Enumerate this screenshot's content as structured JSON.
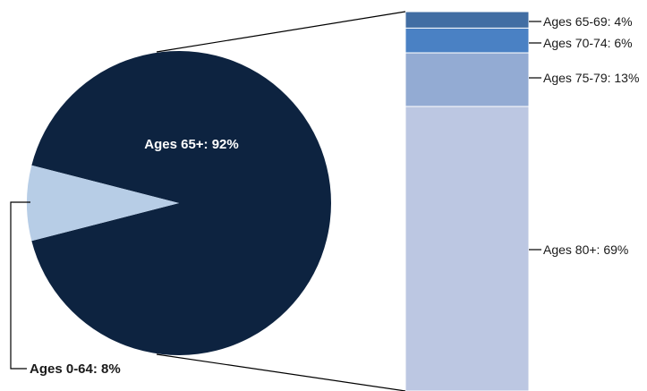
{
  "chart_data": {
    "type": "bar-of-pie",
    "pie": {
      "slices": [
        {
          "label": "Ages 65+: 92%",
          "category": "Ages 65+",
          "value": 92,
          "color": "#0d2340"
        },
        {
          "label": "Ages 0-64: 8%",
          "category": "Ages 0-64",
          "value": 8,
          "color": "#b7cde6"
        }
      ],
      "exploded_slice": "Ages 65+"
    },
    "bar": {
      "segments": [
        {
          "label": "Ages 65-69: 4%",
          "category": "Ages 65-69",
          "value": 4,
          "color": "#416da3"
        },
        {
          "label": "Ages 70-74: 6%",
          "category": "Ages 70-74",
          "value": 6,
          "color": "#4a81c4"
        },
        {
          "label": "Ages 75-79: 13%",
          "category": "Ages 75-79",
          "value": 13,
          "color": "#93abd3"
        },
        {
          "label": "Ages 80+: 69%",
          "category": "Ages 80+",
          "value": 69,
          "color": "#bcc7e2"
        }
      ]
    },
    "connector_color": "#000000"
  }
}
